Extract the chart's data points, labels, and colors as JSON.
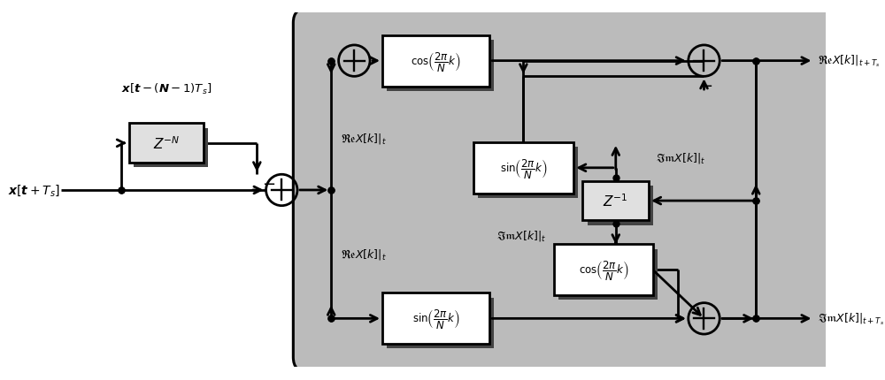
{
  "fig_width": 10.0,
  "fig_height": 4.31,
  "bg_color": "#ffffff",
  "gray_bg": "#bbbbbb",
  "white_box": "#ffffff",
  "light_gray_box": "#e0e0e0",
  "dark_shadow": "#555555",
  "input_label": "$\\boldsymbol{x}\\left[\\boldsymbol{t}+\\boldsymbol{T_s}\\right]$",
  "delay_label": "$\\boldsymbol{x}\\left[\\boldsymbol{t}-(\\boldsymbol{N}-1)\\boldsymbol{T_s}\\right]$",
  "ReX_t_label": "$\\mathfrak{Re}X[k]|_t$",
  "ImX_t_top_label": "$\\mathfrak{Im}X[k]|_t$",
  "ImX_t_bot_label": "$\\mathfrak{Im}X[k]|_t$",
  "ReX_t_bot_label": "$\\mathfrak{Re}X[k]|_t$",
  "ReX_out_label": "$\\mathfrak{Re}X[k]|_{t+T_s}$",
  "ImX_out_label": "$\\mathfrak{Im}X[k]|_{t+T_s}$",
  "cos_label": "$\\cos\\!\\left(\\dfrac{2\\pi}{N}k\\right)$",
  "sin_label": "$\\sin\\!\\left(\\dfrac{2\\pi}{N}k\\right)$",
  "zN_label": "$Z^{-N}$",
  "z1_label": "$Z^{-1}$",
  "minus_label": "$-$"
}
